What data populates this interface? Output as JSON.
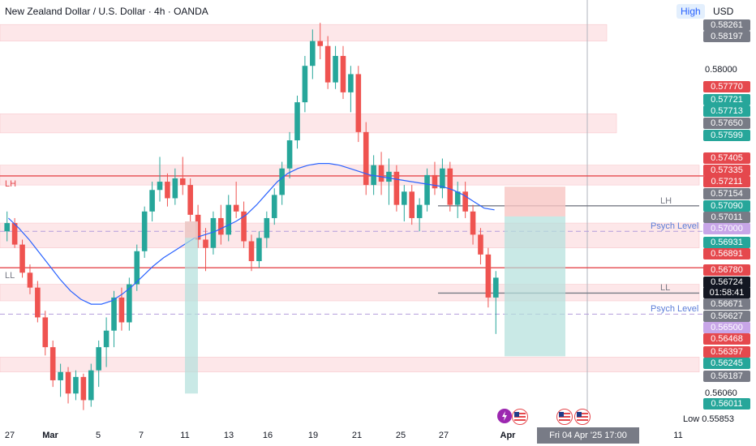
{
  "header": {
    "title": "New Zealand Dollar / U.S. Dollar · 4h · OANDA",
    "high_label": "High",
    "currency_label": "USD"
  },
  "chart_data": {
    "type": "candlestick",
    "title": "New Zealand Dollar / U.S. Dollar · 4h · OANDA",
    "ylim": [
      0.5584,
      0.583
    ],
    "x_labels": [
      "27",
      "Mar",
      "5",
      "7",
      "11",
      "13",
      "16",
      "19",
      "21",
      "25",
      "27",
      "Apr",
      "11"
    ],
    "grid": false,
    "price_axis": [
      {
        "value": "0.58261",
        "style": "gray"
      },
      {
        "value": "0.58197",
        "style": "gray"
      },
      {
        "value": "0.58000",
        "style": "plain"
      },
      {
        "value": "0.57770",
        "style": "red"
      },
      {
        "value": "0.57721",
        "style": "green"
      },
      {
        "value": "0.57713",
        "style": "green"
      },
      {
        "value": "0.57650",
        "style": "gray"
      },
      {
        "value": "0.57599",
        "style": "green"
      },
      {
        "value": "0.57405",
        "style": "red"
      },
      {
        "value": "0.57335",
        "style": "red"
      },
      {
        "value": "0.57211",
        "style": "red"
      },
      {
        "value": "0.57154",
        "style": "gray"
      },
      {
        "value": "0.57090",
        "style": "green"
      },
      {
        "value": "0.57011",
        "style": "gray"
      },
      {
        "value": "0.57000",
        "style": "purple"
      },
      {
        "value": "0.56931",
        "style": "green"
      },
      {
        "value": "0.56891",
        "style": "red"
      },
      {
        "value": "0.56780",
        "style": "red"
      },
      {
        "value": "0.56724",
        "style": "black"
      },
      {
        "value": "01:58:41",
        "style": "black"
      },
      {
        "value": "0.56671",
        "style": "gray"
      },
      {
        "value": "0.56627",
        "style": "gray"
      },
      {
        "value": "0.56500",
        "style": "purple"
      },
      {
        "value": "0.56468",
        "style": "red"
      },
      {
        "value": "0.56397",
        "style": "red"
      },
      {
        "value": "0.56245",
        "style": "green"
      },
      {
        "value": "0.56187",
        "style": "gray"
      },
      {
        "value": "0.56060",
        "style": "plain"
      },
      {
        "value": "0.56011",
        "style": "green"
      },
      {
        "value": "0.55853",
        "style": "plain",
        "prefix": "Low"
      }
    ],
    "horizontal_levels": [
      {
        "label": "LH",
        "value": 0.57335,
        "color": "#e5484d",
        "style": "solid"
      },
      {
        "label": "LL",
        "value": 0.5678,
        "color": "#e5484d",
        "style": "solid"
      },
      {
        "label": "Psych Level",
        "value": 0.57,
        "color": "#b39ddb",
        "style": "dashed"
      },
      {
        "label": "Psych Level",
        "value": 0.565,
        "color": "#b39ddb",
        "style": "dashed"
      },
      {
        "label": "LH",
        "value": 0.57154,
        "color": "#787b86",
        "style": "solid"
      },
      {
        "label": "LL",
        "value": 0.56627,
        "color": "#787b86",
        "style": "solid"
      }
    ],
    "zones": [
      {
        "from": 0.5815,
        "to": 0.5825
      },
      {
        "from": 0.57595,
        "to": 0.5771
      },
      {
        "from": 0.5728,
        "to": 0.574
      },
      {
        "from": 0.569,
        "to": 0.5705
      },
      {
        "from": 0.5658,
        "to": 0.5668
      },
      {
        "from": 0.5615,
        "to": 0.5624
      }
    ],
    "position": {
      "entry": 0.5709,
      "stop": 0.5727,
      "target": 0.56245
    },
    "candles": [
      [
        0.57,
        0.5712,
        0.5694,
        0.5705
      ],
      [
        0.5705,
        0.5708,
        0.569,
        0.5692
      ],
      [
        0.5692,
        0.5695,
        0.5672,
        0.5675
      ],
      [
        0.5675,
        0.568,
        0.5662,
        0.5666
      ],
      [
        0.5666,
        0.567,
        0.5645,
        0.5648
      ],
      [
        0.5648,
        0.5652,
        0.5625,
        0.563
      ],
      [
        0.563,
        0.5634,
        0.5606,
        0.561
      ],
      [
        0.561,
        0.562,
        0.56,
        0.5615
      ],
      [
        0.5615,
        0.5618,
        0.5596,
        0.5602
      ],
      [
        0.5602,
        0.5616,
        0.5598,
        0.5612
      ],
      [
        0.5612,
        0.5614,
        0.5592,
        0.5598
      ],
      [
        0.5598,
        0.562,
        0.5594,
        0.5616
      ],
      [
        0.5616,
        0.5634,
        0.5606,
        0.563
      ],
      [
        0.563,
        0.5648,
        0.5618,
        0.564
      ],
      [
        0.564,
        0.5664,
        0.563,
        0.566
      ],
      [
        0.566,
        0.5666,
        0.564,
        0.5645
      ],
      [
        0.5645,
        0.5672,
        0.564,
        0.5668
      ],
      [
        0.5668,
        0.5692,
        0.5664,
        0.5688
      ],
      [
        0.5688,
        0.5715,
        0.5684,
        0.5712
      ],
      [
        0.5712,
        0.573,
        0.5706,
        0.5725
      ],
      [
        0.5725,
        0.5745,
        0.5718,
        0.573
      ],
      [
        0.573,
        0.5735,
        0.5715,
        0.572
      ],
      [
        0.572,
        0.5738,
        0.5716,
        0.5732
      ],
      [
        0.5732,
        0.5745,
        0.5722,
        0.5728
      ],
      [
        0.5728,
        0.5732,
        0.5706,
        0.571
      ],
      [
        0.571,
        0.5716,
        0.569,
        0.5695
      ],
      [
        0.5695,
        0.5702,
        0.5676,
        0.569
      ],
      [
        0.569,
        0.5712,
        0.5686,
        0.5708
      ],
      [
        0.5708,
        0.5716,
        0.5692,
        0.5698
      ],
      [
        0.5698,
        0.5722,
        0.5694,
        0.5716
      ],
      [
        0.5716,
        0.573,
        0.5708,
        0.5712
      ],
      [
        0.5712,
        0.5718,
        0.569,
        0.5694
      ],
      [
        0.5694,
        0.5698,
        0.5676,
        0.5682
      ],
      [
        0.5682,
        0.57,
        0.5678,
        0.5696
      ],
      [
        0.5696,
        0.5712,
        0.569,
        0.5708
      ],
      [
        0.5708,
        0.5726,
        0.5704,
        0.5722
      ],
      [
        0.5722,
        0.5742,
        0.5716,
        0.5738
      ],
      [
        0.5738,
        0.576,
        0.5732,
        0.5755
      ],
      [
        0.5755,
        0.5782,
        0.575,
        0.5778
      ],
      [
        0.5778,
        0.5806,
        0.5772,
        0.58
      ],
      [
        0.58,
        0.5822,
        0.5792,
        0.5815
      ],
      [
        0.5815,
        0.5826,
        0.5804,
        0.5812
      ],
      [
        0.5812,
        0.5818,
        0.5786,
        0.579
      ],
      [
        0.579,
        0.5812,
        0.5786,
        0.5806
      ],
      [
        0.5806,
        0.5812,
        0.578,
        0.5784
      ],
      [
        0.5784,
        0.58,
        0.5772,
        0.5795
      ],
      [
        0.5795,
        0.58,
        0.5754,
        0.576
      ],
      [
        0.576,
        0.5766,
        0.5722,
        0.5728
      ],
      [
        0.5728,
        0.5746,
        0.5722,
        0.574
      ],
      [
        0.574,
        0.5748,
        0.5722,
        0.573
      ],
      [
        0.573,
        0.5744,
        0.5716,
        0.5736
      ],
      [
        0.5736,
        0.574,
        0.5712,
        0.5716
      ],
      [
        0.5716,
        0.5728,
        0.5706,
        0.5724
      ],
      [
        0.5724,
        0.5728,
        0.5704,
        0.5708
      ],
      [
        0.5708,
        0.572,
        0.57,
        0.5716
      ],
      [
        0.5716,
        0.5738,
        0.5712,
        0.5734
      ],
      [
        0.5734,
        0.5742,
        0.5722,
        0.5726
      ],
      [
        0.5726,
        0.5744,
        0.572,
        0.5738
      ],
      [
        0.5738,
        0.5742,
        0.5712,
        0.5716
      ],
      [
        0.5716,
        0.573,
        0.5708,
        0.5724
      ],
      [
        0.5724,
        0.573,
        0.5708,
        0.5712
      ],
      [
        0.5712,
        0.5716,
        0.5692,
        0.5698
      ],
      [
        0.5698,
        0.5702,
        0.568,
        0.5686
      ],
      [
        0.5686,
        0.569,
        0.5654,
        0.566
      ],
      [
        0.566,
        0.5676,
        0.5638,
        0.5672
      ]
    ],
    "moving_average": [
      0.5708,
      0.5702,
      0.5695,
      0.5687,
      0.5679,
      0.5671,
      0.5664,
      0.5659,
      0.5656,
      0.5656,
      0.5658,
      0.5662,
      0.5667,
      0.5673,
      0.5679,
      0.5684,
      0.5688,
      0.5692,
      0.5696,
      0.5698,
      0.57,
      0.5703,
      0.5706,
      0.571,
      0.5716,
      0.5723,
      0.573,
      0.5735,
      0.5738,
      0.574,
      0.5741,
      0.5741,
      0.574,
      0.5738,
      0.5736,
      0.5734,
      0.5733,
      0.5732,
      0.5731,
      0.573,
      0.5729,
      0.5728,
      0.5727,
      0.5725,
      0.5722,
      0.5718,
      0.5714,
      0.5713
    ]
  },
  "bottom_bar": {
    "low_label": "Low",
    "cursor_time": "Fri 04 Apr '25  17:00"
  },
  "colors": {
    "up": "#26a69a",
    "down": "#ef5350",
    "ma": "#2962ff"
  },
  "events": [
    {
      "icon": "lightning-icon"
    },
    {
      "icon": "us-flag-icon"
    },
    {
      "icon": "us-flag-icon"
    },
    {
      "icon": "us-flag-icon"
    }
  ]
}
